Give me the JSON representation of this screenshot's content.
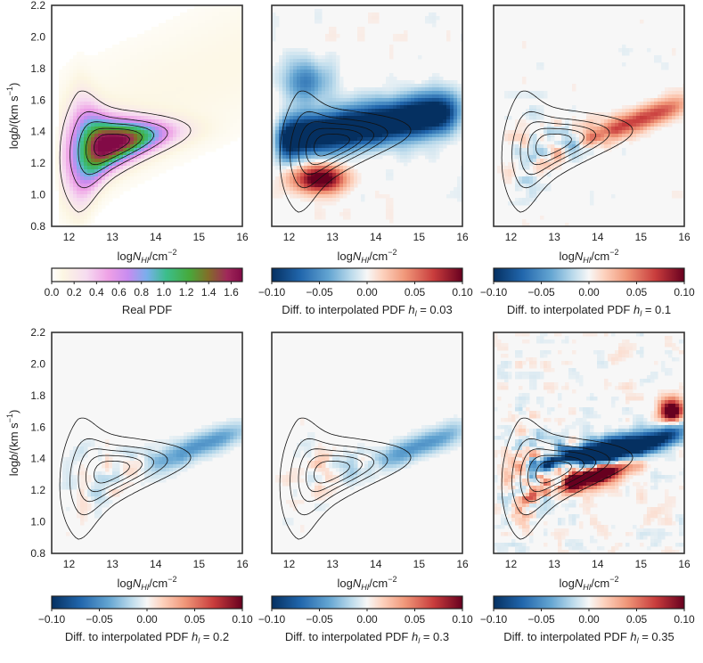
{
  "chart_data": {
    "type": "heatmap",
    "x_axis": {
      "label_prefix": "log",
      "label_symbol": "N",
      "label_subscript": "HI",
      "label_suffix": "/cm",
      "label_superscript": "−2",
      "range": [
        11.6,
        16.0
      ],
      "ticks": [
        12,
        13,
        14,
        15,
        16
      ]
    },
    "y_axis": {
      "label_prefix": "log",
      "label_symbol": "b",
      "label_suffix": "/(km s",
      "label_superscript": "−1",
      "label_close": ")",
      "range": [
        0.8,
        2.2
      ],
      "ticks": [
        "0.8",
        "1.0",
        "1.2",
        "1.4",
        "1.6",
        "1.8",
        "2.0",
        "2.2"
      ]
    },
    "contour_levels": 5,
    "contour_peak": {
      "logN": 12.9,
      "logb": 1.32
    },
    "panels": [
      {
        "colormap": "pdf",
        "colorbar_ticks": [
          "0.0",
          "0.2",
          "0.4",
          "0.6",
          "0.8",
          "1.0",
          "1.2",
          "1.4",
          "1.6"
        ],
        "colorbar_range": [
          0.0,
          1.7
        ],
        "caption": "Real PDF",
        "caption_symbol": "",
        "caption_value": ""
      },
      {
        "colormap": "diverging",
        "colorbar_ticks": [
          "−0.10",
          "−0.05",
          "0.00",
          "0.05",
          "0.10"
        ],
        "colorbar_range": [
          -0.1,
          0.1
        ],
        "caption": "Diff. to interpolated PDF ",
        "caption_symbol": "h",
        "caption_subscript": "l",
        "caption_value": " = 0.03",
        "pattern": "strong"
      },
      {
        "colormap": "diverging",
        "colorbar_ticks": [
          "−0.10",
          "−0.05",
          "0.00",
          "0.05",
          "0.10"
        ],
        "colorbar_range": [
          -0.1,
          0.1
        ],
        "caption": "Diff. to interpolated PDF ",
        "caption_symbol": "h",
        "caption_subscript": "l",
        "caption_value": " = 0.1",
        "pattern": "mild"
      },
      {
        "colormap": "diverging",
        "colorbar_ticks": [
          "−0.10",
          "−0.05",
          "0.00",
          "0.05",
          "0.10"
        ],
        "colorbar_range": [
          -0.1,
          0.1
        ],
        "caption": "Diff. to interpolated PDF ",
        "caption_symbol": "h",
        "caption_subscript": "l",
        "caption_value": " = 0.2",
        "pattern": "faint"
      },
      {
        "colormap": "diverging",
        "colorbar_ticks": [
          "−0.10",
          "−0.05",
          "0.00",
          "0.05",
          "0.10"
        ],
        "colorbar_range": [
          -0.1,
          0.1
        ],
        "caption": "Diff. to interpolated PDF ",
        "caption_symbol": "h",
        "caption_subscript": "l",
        "caption_value": " = 0.3",
        "pattern": "faint"
      },
      {
        "colormap": "diverging",
        "colorbar_ticks": [
          "−0.10",
          "−0.05",
          "0.00",
          "0.05",
          "0.10"
        ],
        "colorbar_range": [
          -0.1,
          0.1
        ],
        "caption": "Diff. to interpolated PDF ",
        "caption_symbol": "h",
        "caption_subscript": "l",
        "caption_value": " = 0.35",
        "pattern": "noisy"
      }
    ]
  }
}
